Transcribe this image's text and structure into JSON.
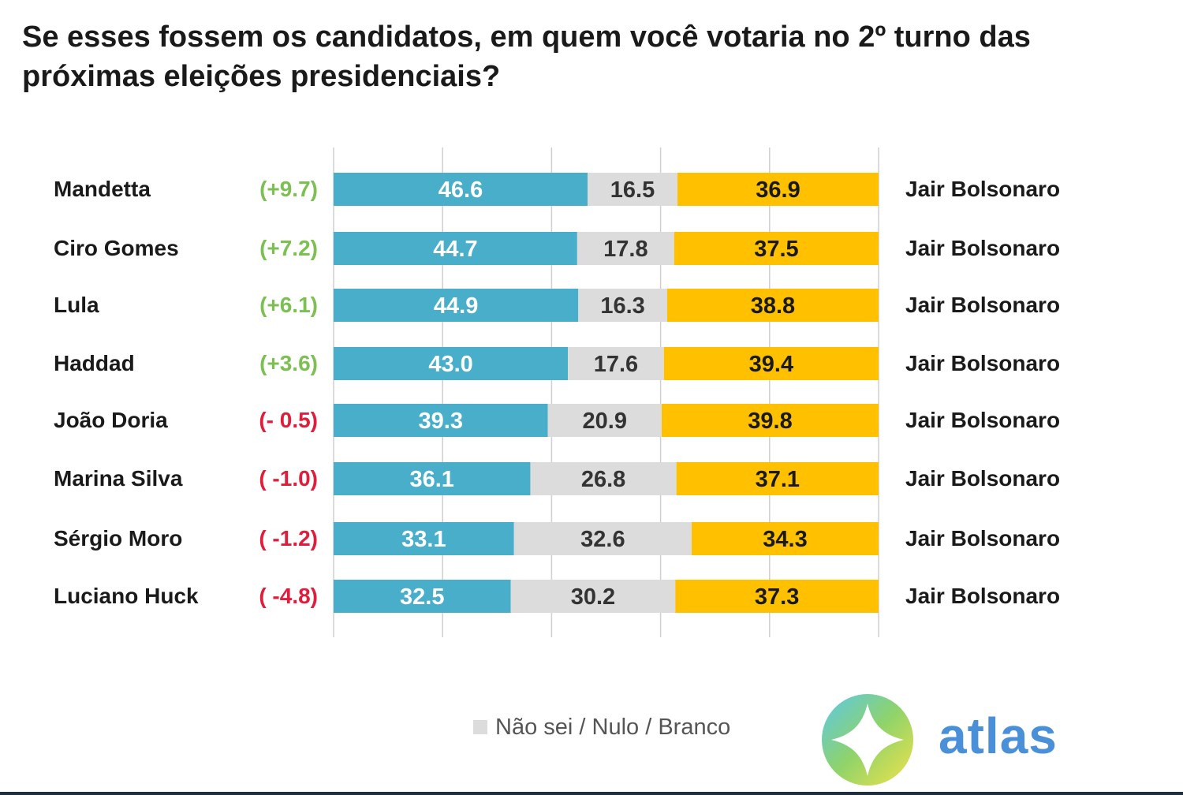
{
  "title": "Se esses fossem os candidatos, em quem você votaria no 2º turno das próximas eleições presidenciais?",
  "legend": {
    "label": "Não sei / Nulo / Branco"
  },
  "logo": {
    "text": "atlas"
  },
  "colors": {
    "candidate": "#48aeca",
    "undecided": "#dcdcdc",
    "bolsonaro": "#ffc000",
    "positive": "#7cc052",
    "negative": "#e01e3c",
    "label": "#1a1a1a",
    "grid": "#cfcfcf"
  },
  "chart_data": {
    "type": "bar",
    "orientation": "horizontal",
    "stacked": true,
    "categories": [
      "Mandetta",
      "Ciro Gomes",
      "Lula",
      "Haddad",
      "João Doria",
      "Marina Silva",
      "Sérgio Moro",
      "Luciano Huck"
    ],
    "differences": [
      "(+9.7)",
      "(+7.2)",
      "(+6.1)",
      "(+3.6)",
      "(- 0.5)",
      "( -1.0)",
      "( -1.2)",
      "( -4.8)"
    ],
    "difference_signs": [
      "positive",
      "positive",
      "positive",
      "positive",
      "negative",
      "negative",
      "negative",
      "negative"
    ],
    "opponent_labels": [
      "Jair Bolsonaro",
      "Jair Bolsonaro",
      "Jair Bolsonaro",
      "Jair Bolsonaro",
      "Jair Bolsonaro",
      "Jair Bolsonaro",
      "Jair Bolsonaro",
      "Jair Bolsonaro"
    ],
    "series": [
      {
        "values": [
          46.6,
          44.7,
          44.9,
          43.0,
          39.3,
          36.1,
          33.1,
          32.5
        ]
      },
      {
        "name": "Não sei / Nulo / Branco",
        "values": [
          16.5,
          17.8,
          16.3,
          17.6,
          20.9,
          26.8,
          32.6,
          30.2
        ]
      },
      {
        "values": [
          36.9,
          37.5,
          38.8,
          39.4,
          39.8,
          37.1,
          34.3,
          37.3
        ]
      }
    ],
    "xlim": [
      0,
      100
    ],
    "grid": true,
    "legend_position": "bottom"
  }
}
